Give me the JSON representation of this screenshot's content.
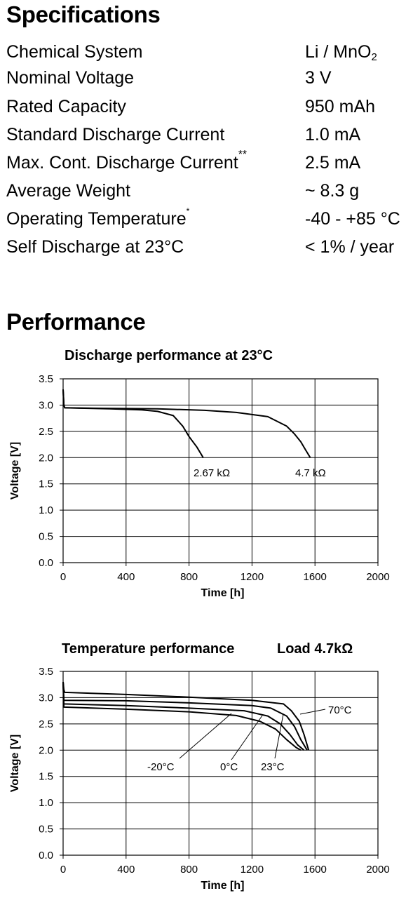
{
  "specifications": {
    "title": "Specifications",
    "rows": [
      {
        "label": "Chemical System",
        "value": "Li / MnO",
        "value_sub": "2"
      },
      {
        "label": "Nominal Voltage",
        "value": "3 V"
      },
      {
        "label": "Rated Capacity",
        "value": "950 mAh"
      },
      {
        "label": "Standard Discharge Current",
        "value": "1.0 mA"
      },
      {
        "label": "Max. Cont. Discharge Current",
        "label_sup": "**",
        "value": "2.5 mA"
      },
      {
        "label": "Average Weight",
        "value": "~ 8.3 g"
      },
      {
        "label": "Operating Temperature",
        "label_sup": "*",
        "value": "-40 - +85 °C"
      },
      {
        "label": "Self Discharge at 23°C",
        "value": "< 1% / year"
      }
    ]
  },
  "performance": {
    "title": "Performance"
  },
  "chart_data": [
    {
      "type": "line",
      "title": "Discharge performance at 23°C",
      "xlabel": "Time [h]",
      "ylabel": "Voltage [V]",
      "xlim": [
        0,
        2000
      ],
      "ylim": [
        0,
        3.5
      ],
      "xticks": [
        0,
        400,
        800,
        1200,
        1600,
        2000
      ],
      "yticks": [
        0.0,
        0.5,
        1.0,
        1.5,
        2.0,
        2.5,
        3.0,
        3.5
      ],
      "grid": true,
      "series": [
        {
          "name": "2.67 kΩ",
          "x": [
            0,
            5,
            10,
            100,
            300,
            500,
            600,
            700,
            760,
            800,
            850,
            890
          ],
          "y": [
            3.3,
            3.0,
            2.95,
            2.94,
            2.93,
            2.91,
            2.88,
            2.8,
            2.6,
            2.4,
            2.2,
            2.0
          ]
        },
        {
          "name": "4.7 kΩ",
          "x": [
            0,
            5,
            10,
            200,
            600,
            900,
            1100,
            1300,
            1420,
            1470,
            1510,
            1540,
            1570
          ],
          "y": [
            3.3,
            3.0,
            2.95,
            2.94,
            2.93,
            2.9,
            2.86,
            2.78,
            2.6,
            2.45,
            2.3,
            2.15,
            2.0
          ]
        }
      ]
    },
    {
      "type": "line",
      "title": "Temperature performance",
      "subtitle": "Load 4.7kΩ",
      "xlabel": "Time [h]",
      "ylabel": "Voltage [V]",
      "xlim": [
        0,
        2000
      ],
      "ylim": [
        0,
        3.5
      ],
      "xticks": [
        0,
        400,
        800,
        1200,
        1600,
        2000
      ],
      "yticks": [
        0.0,
        0.5,
        1.0,
        1.5,
        2.0,
        2.5,
        3.0,
        3.5
      ],
      "grid": true,
      "series": [
        {
          "name": "70°C",
          "x": [
            0,
            5,
            10,
            400,
            800,
            1200,
            1400,
            1450,
            1500,
            1530,
            1560
          ],
          "y": [
            3.3,
            3.15,
            3.1,
            3.06,
            3.01,
            2.95,
            2.88,
            2.75,
            2.55,
            2.3,
            2.0
          ]
        },
        {
          "name": "23°C",
          "x": [
            0,
            5,
            400,
            800,
            1200,
            1320,
            1420,
            1470,
            1510,
            1550
          ],
          "y": [
            3.3,
            2.95,
            2.94,
            2.9,
            2.85,
            2.8,
            2.65,
            2.45,
            2.2,
            2.0
          ]
        },
        {
          "name": "0°C",
          "x": [
            0,
            5,
            400,
            800,
            1150,
            1300,
            1380,
            1440,
            1490,
            1530
          ],
          "y": [
            3.3,
            2.88,
            2.85,
            2.8,
            2.75,
            2.65,
            2.5,
            2.3,
            2.1,
            2.0
          ]
        },
        {
          "name": "-20°C",
          "x": [
            0,
            5,
            400,
            800,
            1100,
            1250,
            1350,
            1420,
            1480,
            1510
          ],
          "y": [
            3.3,
            2.82,
            2.78,
            2.73,
            2.66,
            2.55,
            2.4,
            2.2,
            2.05,
            2.0
          ]
        }
      ]
    }
  ]
}
